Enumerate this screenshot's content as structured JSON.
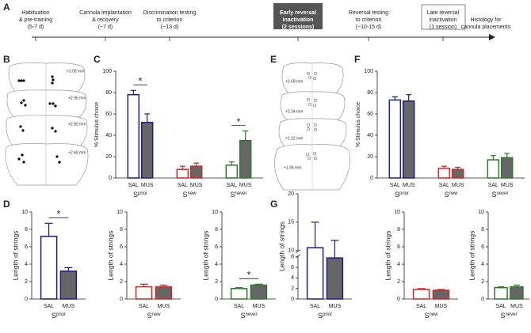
{
  "timeline": {
    "steps": [
      {
        "lines": [
          "Habituation",
          "& pre-training",
          "(5-7 d)"
        ]
      },
      {
        "lines": [
          "Cannula implantation",
          "& recovery",
          "(~7 d)"
        ]
      },
      {
        "lines": [
          "Discrimination testing",
          "to criterion",
          "(~13 d)"
        ]
      },
      {
        "lines": [
          "Early reversal",
          "inactivation",
          "(2 sessions)"
        ]
      },
      {
        "lines": [
          "Reversal testing",
          "to criterion",
          "(~10-15 d)"
        ]
      },
      {
        "lines": [
          "Late reversal",
          "inactivation",
          "(1 session)"
        ]
      },
      {
        "lines": [
          "Histology for",
          "cannula placements"
        ]
      }
    ]
  },
  "panels": {
    "A": "A",
    "B": "B",
    "E": "E"
  },
  "brain_sections": {
    "B": [
      "+3.08 mm",
      "+2.96 mm",
      "+2.80 mm",
      "+2.68 mm"
    ],
    "E": [
      "+2.68 mm",
      "+2.34 mm",
      "+2.22 mm",
      "+1.94 mm"
    ]
  },
  "chart_data": [
    {
      "type": "bar",
      "panel": "C",
      "ylabel": "% Stimulus choice",
      "ylim": [
        0,
        100
      ],
      "yticks": [
        0,
        20,
        40,
        60,
        80,
        100
      ],
      "conditions": [
        "SAL",
        "MUS"
      ],
      "groups": [
        {
          "name": "S",
          "sup": "prior",
          "color": "#1c1c8c",
          "values": [
            78,
            52
          ],
          "errors": [
            4,
            8
          ]
        },
        {
          "name": "S",
          "sup": "new",
          "color": "#d42424",
          "values": [
            8,
            11
          ],
          "errors": [
            3,
            3
          ]
        },
        {
          "name": "S",
          "sup": "never",
          "color": "#2a7a2a",
          "values": [
            12,
            35
          ],
          "errors": [
            3,
            9
          ]
        }
      ],
      "annotations": [
        {
          "text": "*",
          "group": 0
        },
        {
          "text": "*",
          "group": 2
        }
      ]
    },
    {
      "type": "bar",
      "panel": "F",
      "ylabel": "% Stimulus choice",
      "ylim": [
        0,
        100
      ],
      "yticks": [
        0,
        20,
        40,
        60,
        80,
        100
      ],
      "conditions": [
        "SAL",
        "MUS"
      ],
      "groups": [
        {
          "name": "S",
          "sup": "prior",
          "color": "#1c1c8c",
          "values": [
            73,
            72
          ],
          "errors": [
            3,
            6
          ]
        },
        {
          "name": "S",
          "sup": "new",
          "color": "#d42424",
          "values": [
            9,
            8
          ],
          "errors": [
            2,
            2
          ]
        },
        {
          "name": "S",
          "sup": "never",
          "color": "#2a7a2a",
          "values": [
            17,
            19
          ],
          "errors": [
            4,
            4
          ]
        }
      ]
    },
    {
      "type": "bar",
      "panel": "D",
      "ylabel": "Length of strings",
      "ylim": [
        0,
        10
      ],
      "yticks": [
        0,
        2,
        4,
        6,
        8,
        10
      ],
      "conditions": [
        "SAL",
        "MUS"
      ],
      "groups": [
        {
          "name": "S",
          "sup": "prior",
          "color": "#1c1c8c",
          "values": [
            7.2,
            3.2
          ],
          "errors": [
            1.5,
            0.4
          ]
        }
      ],
      "annotations": [
        {
          "text": "*",
          "group": 0
        }
      ]
    },
    {
      "type": "bar",
      "ylabel": "Length of strings",
      "ylim": [
        0,
        10
      ],
      "yticks": [
        0,
        2,
        4,
        6,
        8,
        10
      ],
      "conditions": [
        "SAL",
        "MUS"
      ],
      "groups": [
        {
          "name": "S",
          "sup": "new",
          "color": "#d42424",
          "values": [
            1.4,
            1.4
          ],
          "errors": [
            0.3,
            0.2
          ]
        }
      ]
    },
    {
      "type": "bar",
      "ylabel": "Length of strings",
      "ylim": [
        0,
        10
      ],
      "yticks": [
        0,
        2,
        4,
        6,
        8,
        10
      ],
      "conditions": [
        "SAL",
        "MUS"
      ],
      "groups": [
        {
          "name": "S",
          "sup": "never",
          "color": "#2a7a2a",
          "values": [
            1.2,
            1.6
          ],
          "errors": [
            0.1,
            0.1
          ]
        }
      ],
      "annotations": [
        {
          "text": "*",
          "group": 0
        }
      ]
    },
    {
      "type": "bar",
      "panel": "G",
      "ylabel": "Length of strings",
      "ylim": [
        0,
        20
      ],
      "ybreak": [
        8,
        10
      ],
      "yticks": [
        0,
        2,
        4,
        6,
        8,
        10,
        15,
        20
      ],
      "conditions": [
        "SAL",
        "MUS"
      ],
      "groups": [
        {
          "name": "S",
          "sup": "prior",
          "color": "#1c1c8c",
          "values": [
            10.5,
            7.8
          ],
          "errors": [
            4.5,
            4
          ]
        }
      ]
    },
    {
      "type": "bar",
      "ylabel": "Length of strings",
      "ylim": [
        0,
        10
      ],
      "yticks": [
        0,
        2,
        4,
        6,
        8,
        10
      ],
      "conditions": [
        "SAL",
        "MUS"
      ],
      "groups": [
        {
          "name": "S",
          "sup": "new",
          "color": "#d42424",
          "values": [
            1.1,
            1.0
          ],
          "errors": [
            0.1,
            0.1
          ]
        }
      ]
    },
    {
      "type": "bar",
      "ylabel": "Length of strings",
      "ylim": [
        0,
        10
      ],
      "yticks": [
        0,
        2,
        4,
        6,
        8,
        10
      ],
      "conditions": [
        "SAL",
        "MUS"
      ],
      "groups": [
        {
          "name": "S",
          "sup": "never",
          "color": "#2a7a2a",
          "values": [
            1.3,
            1.4
          ],
          "errors": [
            0.1,
            0.2
          ]
        }
      ]
    }
  ]
}
